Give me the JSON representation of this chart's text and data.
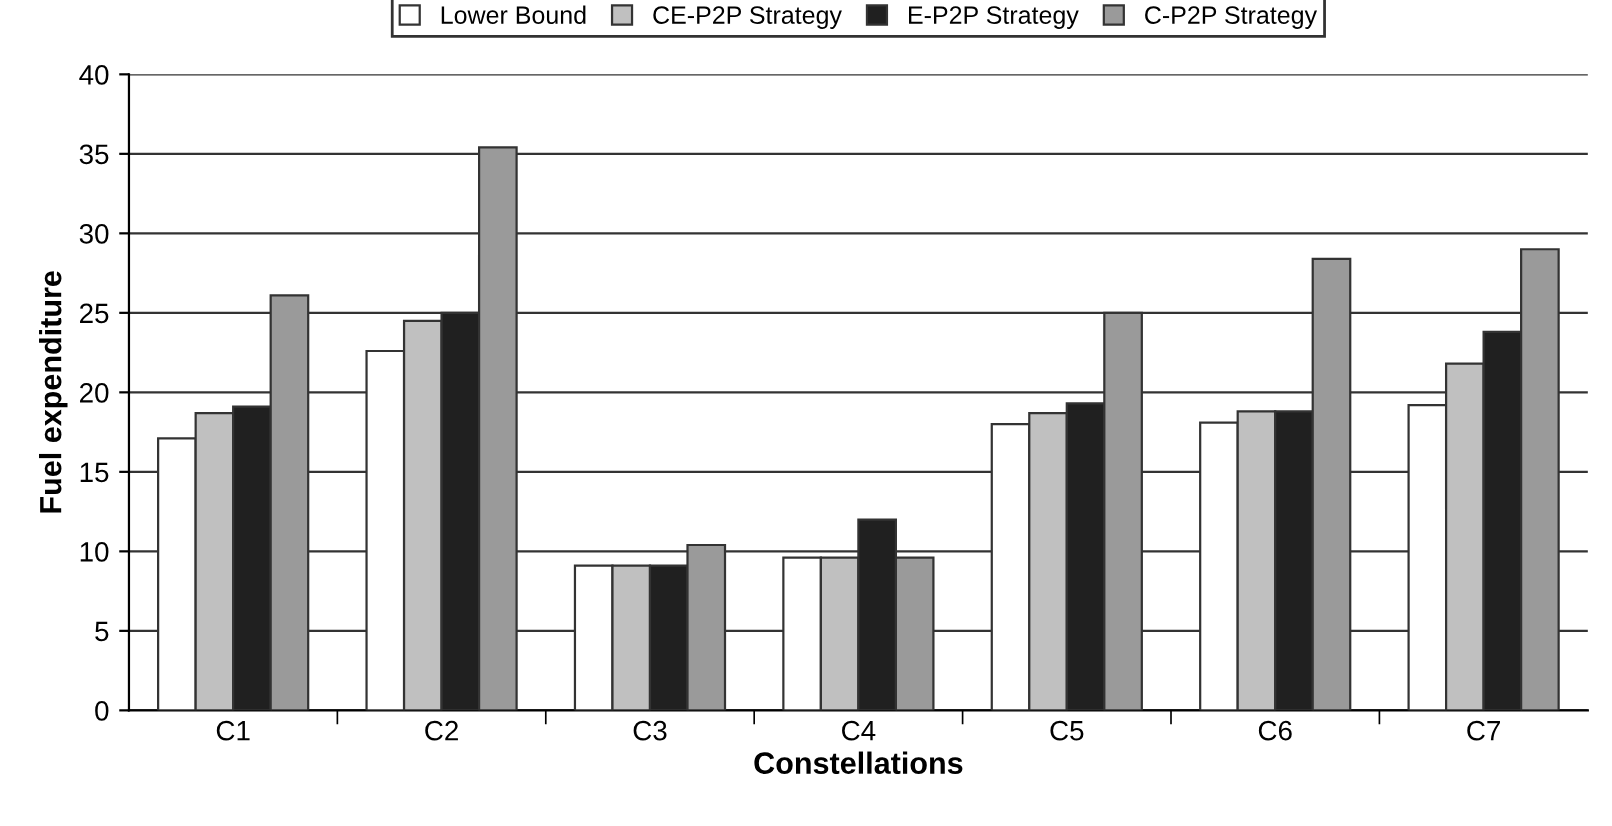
{
  "chart_data": {
    "type": "bar",
    "xlabel": "Constellations",
    "ylabel": "Fuel expenditure",
    "categories": [
      "C1",
      "C2",
      "C3",
      "C4",
      "C5",
      "C6",
      "C7"
    ],
    "series": [
      {
        "name": "Lower Bound",
        "color": "#ffffff",
        "values": [
          17.1,
          22.6,
          9.1,
          9.6,
          18.0,
          18.1,
          19.2
        ]
      },
      {
        "name": "CE-P2P Strategy",
        "color": "#c0c0c0",
        "values": [
          18.7,
          24.5,
          9.1,
          9.6,
          18.7,
          18.8,
          21.8
        ]
      },
      {
        "name": "E-P2P Strategy",
        "color": "#202020",
        "values": [
          19.1,
          25.0,
          9.1,
          12.0,
          19.3,
          18.8,
          23.8
        ]
      },
      {
        "name": "C-P2P Strategy",
        "color": "#9a9a9a",
        "values": [
          26.1,
          35.4,
          10.4,
          9.6,
          25.0,
          28.4,
          29.0
        ]
      }
    ],
    "ylim": [
      0,
      40
    ],
    "yticks": [
      0,
      5,
      10,
      15,
      20,
      25,
      30,
      35,
      40
    ],
    "grid": "y",
    "legend": "top"
  }
}
